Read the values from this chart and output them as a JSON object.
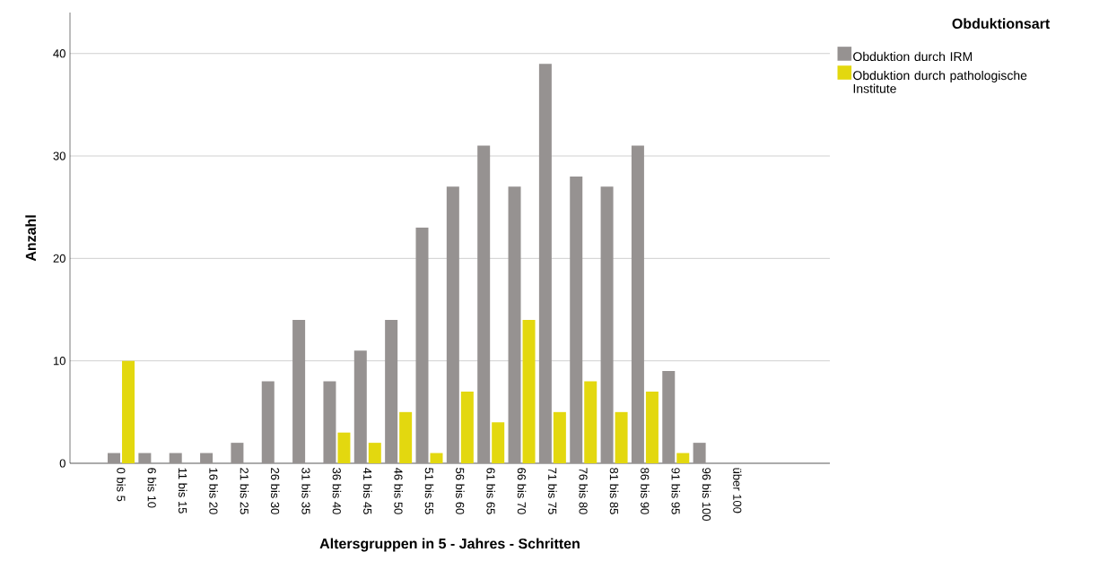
{
  "chart_data": {
    "type": "bar",
    "xlabel": "Altersgruppen in 5 - Jahres - Schritten",
    "ylabel": "Anzahl",
    "legend_title": "Obduktionsart",
    "categories": [
      "0 bis 5",
      "6 bis 10",
      "11 bis 15",
      "16 bis 20",
      "21 bis 25",
      "26 bis 30",
      "31 bis 35",
      "36 bis 40",
      "41 bis 45",
      "46 bis 50",
      "51 bis 55",
      "56 bis 60",
      "61 bis 65",
      "66 bis 70",
      "71 bis 75",
      "76 bis 80",
      "81 bis 85",
      "86 bis 90",
      "91 bis 95",
      "96 bis 100",
      "über 100"
    ],
    "series": [
      {
        "name": "Obduktion durch IRM",
        "color": "#969291",
        "values": [
          1,
          1,
          1,
          1,
          2,
          8,
          14,
          8,
          11,
          14,
          23,
          27,
          31,
          27,
          39,
          28,
          27,
          31,
          9,
          2,
          0
        ]
      },
      {
        "name": "Obduktion durch pathologische Institute",
        "color": "#e3d80f",
        "values": [
          10,
          0,
          0,
          0,
          0,
          0,
          0,
          3,
          2,
          5,
          1,
          7,
          4,
          14,
          5,
          8,
          5,
          7,
          1,
          0,
          0
        ]
      }
    ],
    "ylim": [
      0,
      44
    ],
    "yticks": [
      0,
      10,
      20,
      30,
      40
    ],
    "grid": "y",
    "legend": "top right"
  }
}
